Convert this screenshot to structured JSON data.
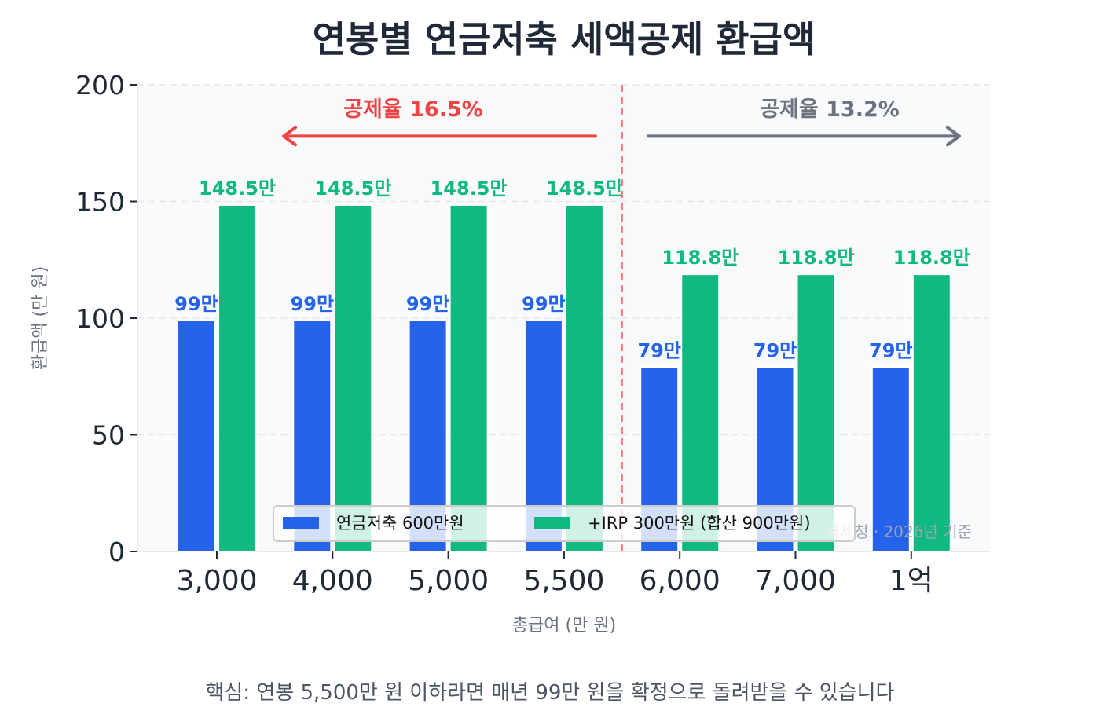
{
  "chart_data": {
    "type": "bar",
    "title": "연봉별 연금저축 세액공제 환급액",
    "xlabel": "총급여 (만 원)",
    "ylabel": "환급액 (만 원)",
    "ylim": [
      0,
      200
    ],
    "yticks": [
      "0",
      "50",
      "100",
      "150",
      "200"
    ],
    "categories": [
      "3,000",
      "4,000",
      "5,000",
      "5,500",
      "6,000",
      "7,000",
      "1억"
    ],
    "series": [
      {
        "name": "연금저축 600만원",
        "color": "#2563eb",
        "values": [
          99,
          99,
          99,
          99,
          79,
          79,
          79
        ],
        "labels": [
          "99만",
          "99만",
          "99만",
          "99만",
          "79만",
          "79만",
          "79만"
        ]
      },
      {
        "name": "+IRP 300만원 (합산 900만원)",
        "color": "#10b981",
        "values": [
          148.5,
          148.5,
          148.5,
          148.5,
          118.8,
          118.8,
          118.8
        ],
        "labels": [
          "148.5만",
          "148.5만",
          "148.5만",
          "148.5만",
          "118.8만",
          "118.8만",
          "118.8만"
        ]
      }
    ],
    "grid": true,
    "legend": "bottom-center",
    "annotations": {
      "left": {
        "text": "공제율 16.5%",
        "color": "#ef4444",
        "direction": "left"
      },
      "right": {
        "text": "공제율 13.2%",
        "color": "#6b7280",
        "direction": "right"
      },
      "divider_color": "#f87171"
    },
    "source": "국세청 · 2026년 기준"
  },
  "footer": "핵심: 연봉 5,500만 원 이하라면 매년 99만 원을 확정으로 돌려받을 수 있습니다"
}
